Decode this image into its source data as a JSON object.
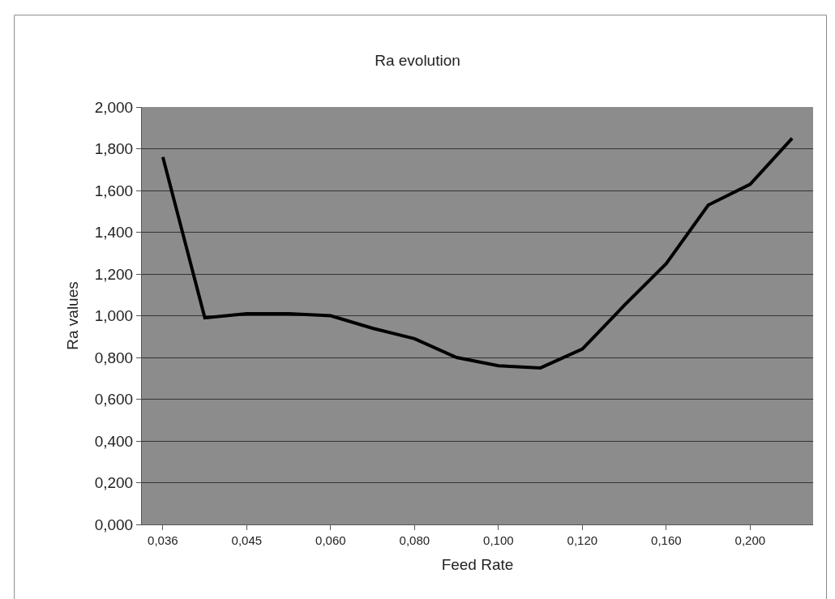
{
  "chart_data": {
    "type": "line",
    "title": "Ra evolution",
    "xlabel": "Feed Rate",
    "ylabel": "Ra values",
    "categories": [
      "0,036",
      null,
      "0,045",
      null,
      "0,060",
      null,
      "0,080",
      null,
      "0,100",
      null,
      "0,120",
      null,
      "0,160",
      null,
      "0,200",
      null
    ],
    "series": [
      {
        "color": "#000000",
        "values": [
          1.76,
          0.99,
          1.01,
          1.01,
          1.0,
          0.94,
          0.89,
          0.8,
          0.76,
          0.75,
          0.84,
          1.05,
          1.25,
          1.53,
          1.63,
          1.85
        ]
      }
    ],
    "ylim": [
      0,
      2
    ],
    "yticks": [
      {
        "value": 0,
        "label": "0,000"
      },
      {
        "value": 0.2,
        "label": "0,200"
      },
      {
        "value": 0.4,
        "label": "0,400"
      },
      {
        "value": 0.6,
        "label": "0,600"
      },
      {
        "value": 0.8,
        "label": "0,800"
      },
      {
        "value": 1.0,
        "label": "1,000"
      },
      {
        "value": 1.2,
        "label": "1,200"
      },
      {
        "value": 1.4,
        "label": "1,400"
      },
      {
        "value": 1.6,
        "label": "1,600"
      },
      {
        "value": 1.8,
        "label": "1,800"
      },
      {
        "value": 2.0,
        "label": "2,000"
      }
    ],
    "grid": "y",
    "marker": "none",
    "line_style": "solid"
  }
}
